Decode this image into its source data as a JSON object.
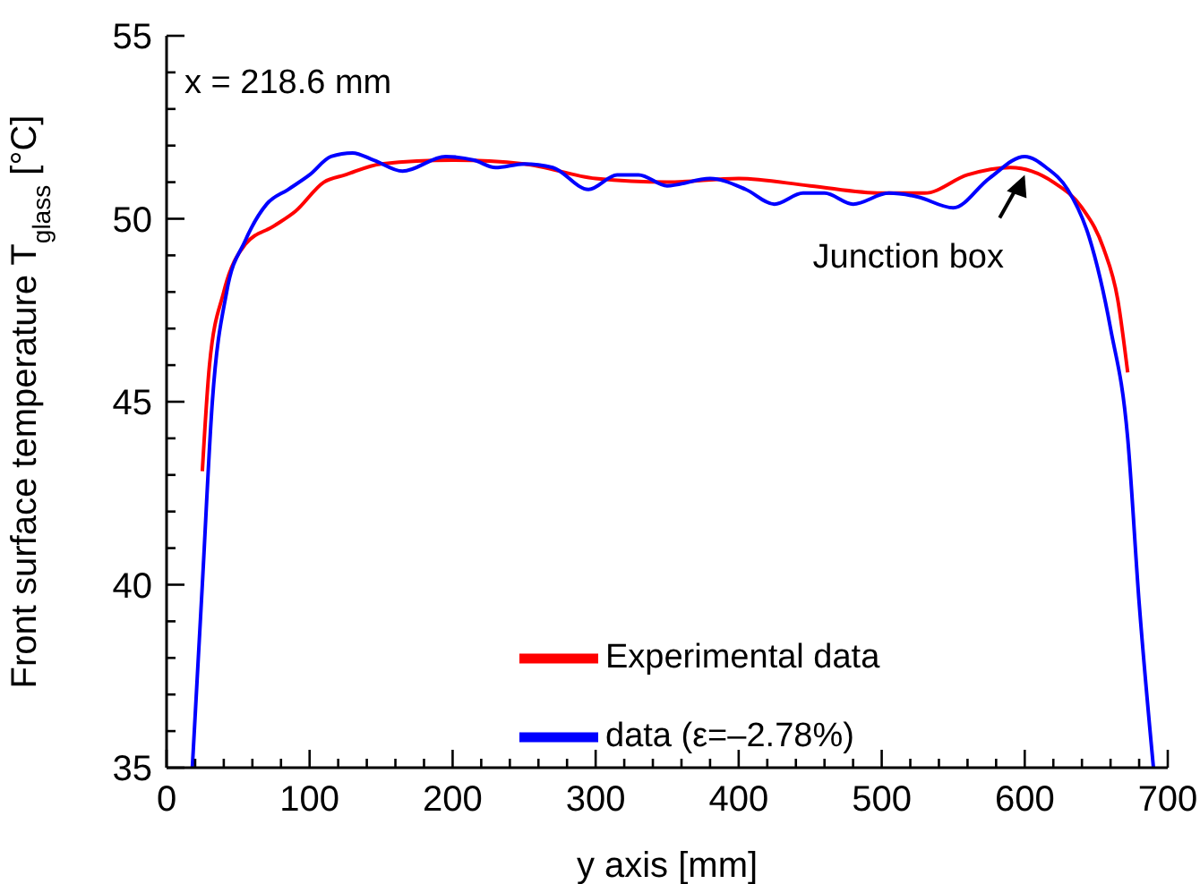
{
  "chart_data": {
    "type": "line",
    "xlabel": "y axis [mm]",
    "ylabel": "Front surface temperature T$_{glass}$ [°C]",
    "annotations": [
      "x = 218.6 mm",
      {
        "text": "Junction box",
        "x": 600,
        "y": 51.2
      }
    ],
    "xlim": [
      0,
      700
    ],
    "xticks": [
      0,
      {
        "value": 20,
        "label": null
      },
      {
        "value": 40,
        "label": null
      },
      {
        "value": 60,
        "label": null
      },
      {
        "value": 80,
        "label": null
      },
      100,
      {
        "value": 120,
        "label": null
      },
      {
        "value": 140,
        "label": null
      },
      {
        "value": 160,
        "label": null
      },
      {
        "value": 180,
        "label": null
      },
      200,
      {
        "value": 220,
        "label": null
      },
      {
        "value": 240,
        "label": null
      },
      {
        "value": 260,
        "label": null
      },
      {
        "value": 280,
        "label": null
      },
      300,
      {
        "value": 320,
        "label": null
      },
      {
        "value": 340,
        "label": null
      },
      {
        "value": 360,
        "label": null
      },
      {
        "value": 380,
        "label": null
      },
      400,
      {
        "value": 420,
        "label": null
      },
      {
        "value": 440,
        "label": null
      },
      {
        "value": 460,
        "label": null
      },
      {
        "value": 480,
        "label": null
      },
      500,
      {
        "value": 520,
        "label": null
      },
      {
        "value": 540,
        "label": null
      },
      {
        "value": 560,
        "label": null
      },
      {
        "value": 580,
        "label": null
      },
      600,
      {
        "value": 620,
        "label": null
      },
      {
        "value": 640,
        "label": null
      },
      {
        "value": 660,
        "label": null
      },
      {
        "value": 680,
        "label": null
      },
      700
    ],
    "ylim": [
      35,
      55
    ],
    "yticks": [
      35,
      {
        "value": 36,
        "label": null
      },
      {
        "value": 37,
        "label": null
      },
      {
        "value": 38,
        "label": null
      },
      {
        "value": 39,
        "label": null
      },
      40,
      {
        "value": 41,
        "label": null
      },
      {
        "value": 42,
        "label": null
      },
      {
        "value": 43,
        "label": null
      },
      {
        "value": 44,
        "label": null
      },
      45,
      {
        "value": 46,
        "label": null
      },
      {
        "value": 47,
        "label": null
      },
      {
        "value": 48,
        "label": null
      },
      {
        "value": 49,
        "label": null
      },
      50,
      {
        "value": 51,
        "label": null
      },
      {
        "value": 52,
        "label": null
      },
      {
        "value": 53,
        "label": null
      },
      {
        "value": 54,
        "label": null
      },
      55
    ],
    "grid": false,
    "legend": "bottom right",
    "marker": "none",
    "line_style": "solid",
    "series": [
      {
        "name": "Experimental data",
        "color": "#ff0000",
        "x": [
          25,
          30,
          40,
          55,
          75,
          90,
          110,
          125,
          150,
          200,
          250,
          300,
          350,
          400,
          450,
          500,
          530,
          560,
          590,
          620,
          640,
          655,
          665,
          672
        ],
        "values": [
          43.1,
          46,
          48,
          49.3,
          49.8,
          50.2,
          51,
          51.2,
          51.5,
          51.6,
          51.5,
          51.1,
          51,
          51.1,
          50.9,
          50.7,
          50.7,
          51.2,
          51.4,
          51,
          50.3,
          49.2,
          47.8,
          45.8
        ]
      },
      {
        "name": "data (ε=–2.78%)",
        "color": "#0000ff",
        "x": [
          18,
          25,
          32,
          42,
          55,
          70,
          85,
          100,
          115,
          130,
          145,
          165,
          195,
          215,
          230,
          250,
          270,
          295,
          315,
          330,
          350,
          380,
          405,
          425,
          445,
          460,
          480,
          505,
          525,
          550,
          575,
          600,
          615,
          630,
          645,
          660,
          672,
          680,
          690
        ],
        "values": [
          35,
          40,
          45,
          48,
          49.4,
          50.4,
          50.8,
          51.2,
          51.7,
          51.8,
          51.6,
          51.3,
          51.7,
          51.6,
          51.4,
          51.5,
          51.4,
          50.8,
          51.2,
          51.2,
          50.9,
          51.1,
          50.8,
          50.4,
          50.7,
          50.7,
          50.4,
          50.7,
          50.6,
          50.3,
          51.1,
          51.7,
          51.4,
          50.8,
          49.5,
          47,
          44,
          39.5,
          35
        ]
      }
    ]
  }
}
